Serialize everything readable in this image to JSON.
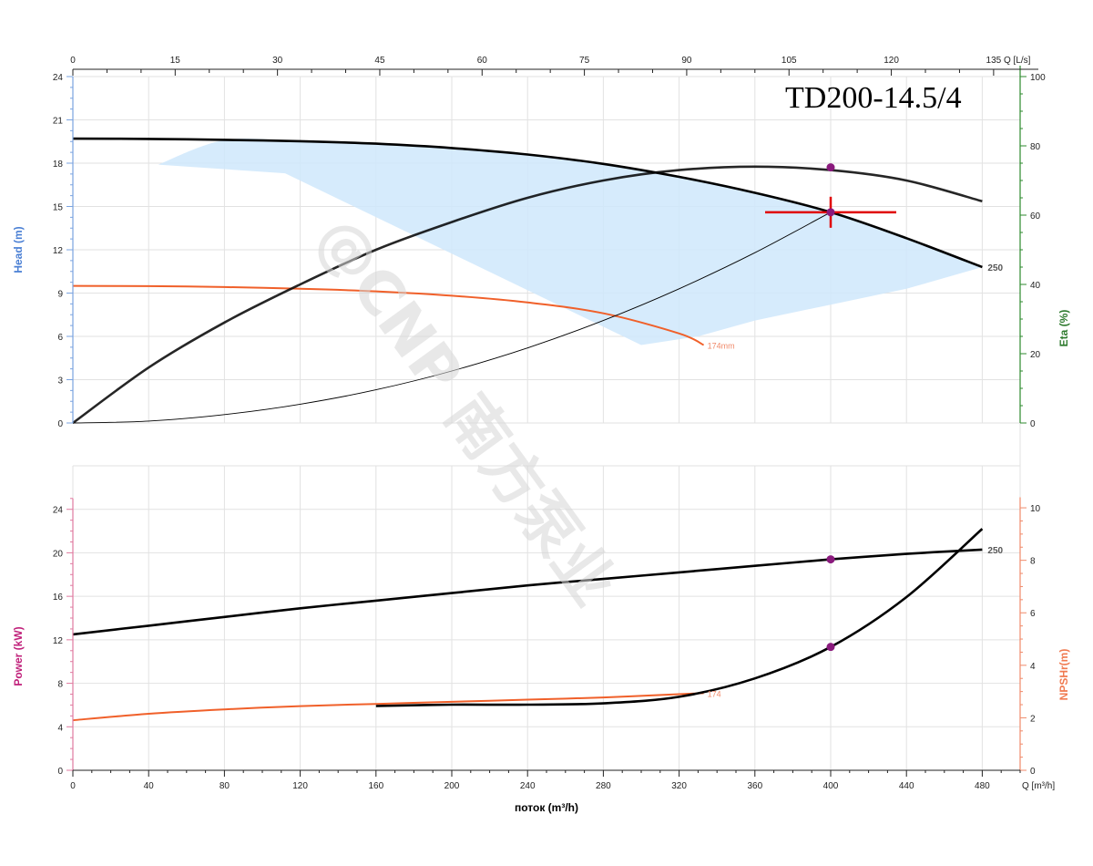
{
  "chart_data": [
    {
      "type": "line",
      "title": "TD200-14.5/4",
      "top_axis": {
        "label": "Q [L/s]",
        "ticks": [
          0,
          15,
          30,
          45,
          60,
          75,
          90,
          105,
          120,
          135
        ]
      },
      "ylabel_left": "Head (m)",
      "ylabel_right": "Eta (%)",
      "ylim_left": [
        0,
        24
      ],
      "ylim_right": [
        0,
        100
      ],
      "yticks_left": [
        0,
        3,
        6,
        9,
        12,
        15,
        18,
        21,
        24
      ],
      "yticks_right": [
        0,
        20,
        40,
        60,
        80,
        100
      ],
      "xlim": [
        0,
        500
      ],
      "grid": true,
      "series": [
        {
          "name": "250",
          "axis": "left",
          "color": "#000000",
          "x": [
            0,
            40,
            80,
            120,
            160,
            200,
            240,
            280,
            320,
            360,
            400,
            440,
            480
          ],
          "y": [
            19.7,
            19.68,
            19.62,
            19.52,
            19.35,
            19.05,
            18.6,
            17.95,
            17.05,
            15.95,
            14.6,
            12.8,
            10.8
          ]
        },
        {
          "name": "174mm",
          "axis": "left",
          "color": "#f0602a",
          "x": [
            0,
            40,
            80,
            120,
            160,
            200,
            240,
            280,
            320,
            333
          ],
          "y": [
            9.5,
            9.48,
            9.42,
            9.3,
            9.12,
            8.82,
            8.35,
            7.6,
            6.2,
            5.4
          ]
        },
        {
          "name": "",
          "axis": "right",
          "color": "#000000",
          "x": [
            0,
            40,
            80,
            120,
            160,
            200,
            240,
            280,
            320,
            360,
            400,
            440,
            480
          ],
          "y": [
            0,
            16,
            29,
            40,
            50,
            58,
            65,
            70,
            73,
            74,
            73,
            70,
            64
          ]
        },
        {
          "name": "",
          "axis": "left",
          "color": "#000000",
          "x": [
            0,
            40,
            80,
            120,
            160,
            200,
            240,
            280,
            320,
            360,
            400
          ],
          "y": [
            0,
            0.13,
            0.58,
            1.3,
            2.3,
            3.6,
            5.2,
            7.1,
            9.3,
            11.8,
            14.6
          ]
        }
      ],
      "duty_point": {
        "x": 400,
        "y": 14.6
      },
      "efficiency_point": {
        "x": 400,
        "eta": 73
      },
      "operating_area": {
        "upper_x": [
          45,
          80,
          120,
          160,
          200,
          240,
          280,
          320,
          360,
          400,
          440,
          480
        ],
        "upper_y": [
          17.9,
          19.6,
          19.52,
          19.35,
          19.05,
          18.6,
          17.95,
          17.05,
          15.95,
          14.6,
          12.8,
          10.8
        ],
        "lower_x": [
          480,
          440,
          400,
          360,
          330,
          300,
          112
        ],
        "lower_y": [
          10.8,
          9.3,
          8.2,
          7.1,
          6.0,
          5.4,
          17.3
        ]
      },
      "curve_labels": [
        "250",
        "174mm"
      ]
    },
    {
      "type": "line",
      "ylabel_left": "Power (kW)",
      "ylabel_right": "NPSHr(m)",
      "xlabel": "поток (m³/h)",
      "x_unit_label": "Q [m³/h]",
      "ylim_left": [
        0,
        28
      ],
      "ylim_right": [
        0,
        11.6
      ],
      "yticks_left": [
        0,
        4,
        8,
        12,
        16,
        20,
        24
      ],
      "yticks_right": [
        0,
        2,
        4,
        6,
        8,
        10
      ],
      "xticks": [
        0,
        40,
        80,
        120,
        160,
        200,
        240,
        280,
        320,
        360,
        400,
        440,
        480
      ],
      "xlim": [
        0,
        500
      ],
      "grid": true,
      "series": [
        {
          "name": "250",
          "axis": "left",
          "color": "#000000",
          "x": [
            0,
            40,
            80,
            120,
            160,
            200,
            240,
            280,
            320,
            360,
            400,
            440,
            480
          ],
          "y": [
            12.5,
            13.3,
            14.1,
            14.9,
            15.6,
            16.3,
            17.0,
            17.6,
            18.2,
            18.8,
            19.4,
            19.9,
            20.3
          ]
        },
        {
          "name": "174mm",
          "axis": "left",
          "color": "#f0602a",
          "x": [
            0,
            40,
            80,
            120,
            160,
            200,
            240,
            280,
            320,
            333
          ],
          "y": [
            4.6,
            5.2,
            5.6,
            5.9,
            6.1,
            6.3,
            6.5,
            6.7,
            7.0,
            7.1
          ]
        },
        {
          "name": "",
          "axis": "right",
          "color": "#000000",
          "x": [
            160,
            200,
            240,
            280,
            320,
            360,
            400,
            440,
            480
          ],
          "y": [
            2.45,
            2.5,
            2.5,
            2.55,
            2.8,
            3.5,
            4.7,
            6.6,
            9.2
          ]
        }
      ],
      "points": [
        {
          "x": 400,
          "power": 19.4
        },
        {
          "x": 400,
          "npsh": 4.7
        }
      ],
      "curve_labels": [
        "250",
        "174"
      ]
    }
  ],
  "watermark": "@CNP 南方泵业"
}
